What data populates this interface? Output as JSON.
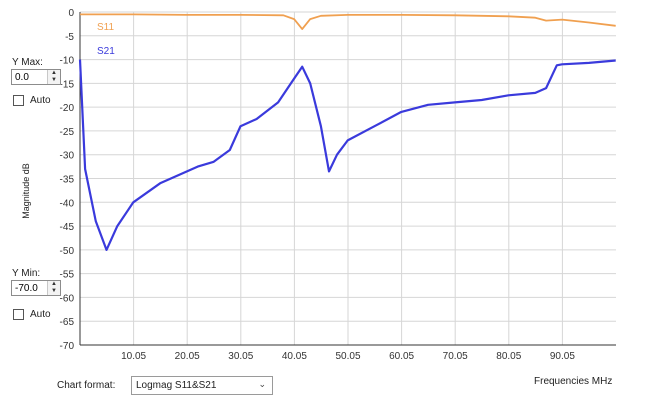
{
  "ymax": {
    "label": "Y Max:",
    "value": "0.0",
    "auto_label": "Auto"
  },
  "ymin": {
    "label": "Y Min:",
    "value": "-70.0",
    "auto_label": "Auto"
  },
  "chart_format": {
    "label": "Chart format:",
    "value": "Logmag S11&S21"
  },
  "colors": {
    "s11": "#f0a050",
    "s21": "#3a3adc",
    "grid": "#d6d6d6",
    "axis": "#333333"
  },
  "chart_data": {
    "type": "line",
    "ylabel": "Magnitude dB",
    "xlabel": "Frequencies MHz",
    "xlim": [
      0.05,
      100.05
    ],
    "ylim": [
      -70,
      0
    ],
    "y_ticks": [
      "0",
      "-5",
      "-10",
      "-15",
      "-20",
      "-25",
      "-30",
      "-35",
      "-40",
      "-45",
      "-50",
      "-55",
      "-60",
      "-65",
      "-70"
    ],
    "x_ticks": [
      "10.05",
      "20.05",
      "30.05",
      "40.05",
      "50.05",
      "60.05",
      "70.05",
      "80.05",
      "90.05"
    ],
    "grid": true,
    "legend": "top-left",
    "series": [
      {
        "name": "S11",
        "x": [
          0.05,
          5,
          10,
          20,
          30,
          38,
          40,
          41.5,
          43,
          45,
          50,
          60,
          70,
          80,
          85,
          87,
          90,
          95,
          100
        ],
        "y": [
          -0.5,
          -0.5,
          -0.5,
          -0.6,
          -0.6,
          -0.7,
          -1.5,
          -3.6,
          -1.5,
          -0.8,
          -0.6,
          -0.6,
          -0.7,
          -0.9,
          -1.2,
          -1.8,
          -1.6,
          -2.2,
          -2.9
        ]
      },
      {
        "name": "S21",
        "x": [
          0.05,
          1,
          3,
          5,
          7,
          10,
          15,
          19,
          22,
          25,
          28,
          30,
          33,
          37,
          40,
          41.5,
          43,
          45,
          46.5,
          48,
          50,
          55,
          60,
          65,
          70,
          75,
          80,
          85,
          87,
          89,
          90,
          95,
          100
        ],
        "y": [
          -10,
          -33,
          -44,
          -50,
          -45,
          -40,
          -36,
          -34,
          -32.5,
          -31.5,
          -29,
          -24,
          -22.5,
          -19,
          -14,
          -11.5,
          -15,
          -24,
          -33.5,
          -30,
          -27,
          -24,
          -21,
          -19.5,
          -19,
          -18.5,
          -17.5,
          -17,
          -16,
          -11.2,
          -11,
          -10.7,
          -10.2
        ]
      }
    ]
  }
}
